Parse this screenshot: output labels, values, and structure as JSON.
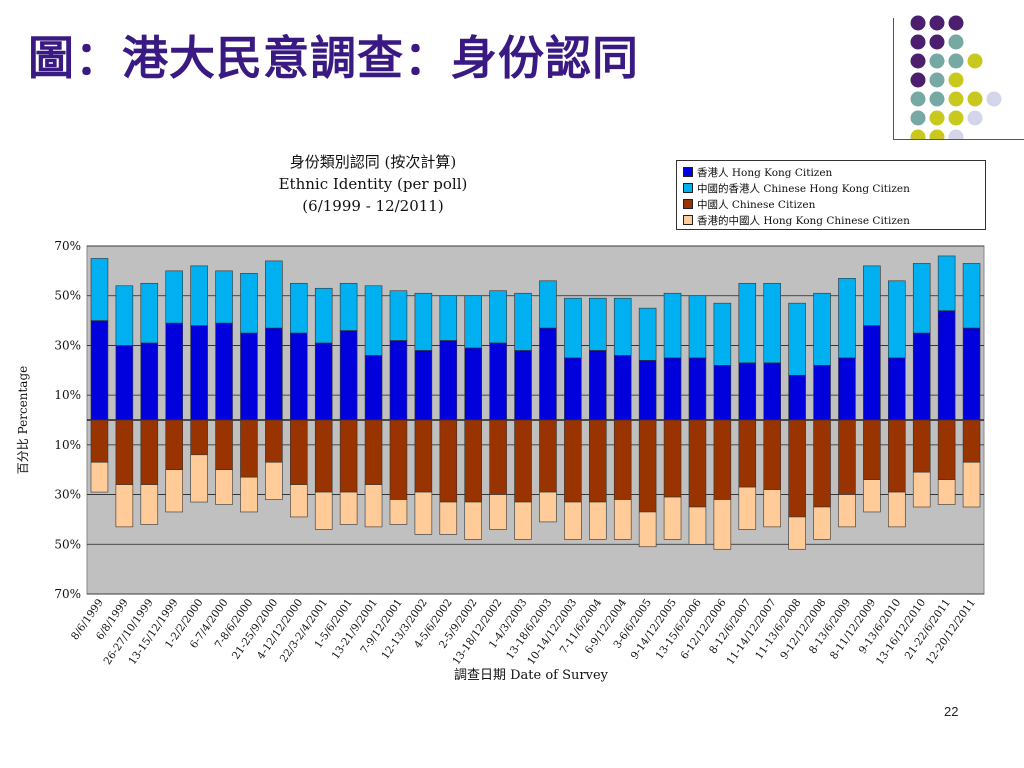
{
  "slide": {
    "title": "圖：港大民意調查：身份認同",
    "page_number": "22"
  },
  "legend": {
    "items": [
      {
        "label": "香港人 Hong Kong Citizen",
        "color": "#0000dd"
      },
      {
        "label": "中國的香港人 Chinese Hong Kong Citizen",
        "color": "#00b0f0"
      },
      {
        "label": "中國人 Chinese Citizen",
        "color": "#993300"
      },
      {
        "label": "香港的中國人 Hong Kong Chinese Citizen",
        "color": "#ffcc99"
      }
    ]
  },
  "chart_data": {
    "type": "bar",
    "title": "身份類別認同 (按次計算)",
    "subtitle": "Ethnic Identity (per poll)",
    "subtitle2": "(6/1999 - 12/2011)",
    "xlabel": "調查日期 Date of Survey",
    "ylabel": "百分比 Percentage",
    "ylim": [
      -70,
      70
    ],
    "y_tick_labels": [
      "70%",
      "50%",
      "30%",
      "10%",
      "10%",
      "30%",
      "50%",
      "70%"
    ],
    "grid": true,
    "categories": [
      "8/6/1999",
      "6/8/1999",
      "26-27/10/1999",
      "13-15/12/1999",
      "1-2/2/2000",
      "6-7/4/2000",
      "7-8/6/2000",
      "21-25/9/2000",
      "4-12/12/2000",
      "22/3-2/4/2001",
      "1-5/6/2001",
      "13-21/9/2001",
      "7-9/12/2001",
      "12-13/3/2002",
      "4-5/6/2002",
      "2-5/9/2002",
      "13-18/12/2002",
      "1-4/3/2003",
      "13-18/6/2003",
      "10-14/12/2003",
      "7-11/6/2004",
      "6-9/12/2004",
      "3-6/6/2005",
      "9-14/12/2005",
      "13-15/6/2006",
      "6-12/12/2006",
      "8-12/6/2007",
      "11-14/12/2007",
      "11-13/6/2008",
      "9-12/12/2008",
      "8-13/6/2009",
      "8-11/12/2009",
      "9-13/6/2010",
      "13-16/12/2010",
      "21-22/6/2011",
      "12-20/12/2011"
    ],
    "series": [
      {
        "name": "香港人 Hong Kong Citizen",
        "color": "#0000dd",
        "values": [
          40,
          30,
          31,
          39,
          38,
          39,
          35,
          37,
          35,
          31,
          36,
          26,
          32,
          28,
          32,
          29,
          31,
          28,
          37,
          25,
          28,
          26,
          24,
          25,
          25,
          22,
          23,
          23,
          18,
          22,
          25,
          38,
          25,
          35,
          44,
          37
        ]
      },
      {
        "name": "中國的香港人 Chinese Hong Kong Citizen",
        "color": "#00b0f0",
        "values": [
          25,
          24,
          24,
          21,
          24,
          21,
          24,
          27,
          20,
          22,
          19,
          28,
          20,
          23,
          18,
          21,
          21,
          23,
          19,
          24,
          21,
          23,
          21,
          26,
          25,
          25,
          32,
          32,
          29,
          29,
          32,
          24,
          31,
          28,
          22,
          26
        ]
      },
      {
        "name": "中國人 Chinese Citizen",
        "color": "#993300",
        "values": [
          17,
          26,
          26,
          20,
          14,
          20,
          23,
          17,
          26,
          29,
          29,
          26,
          32,
          29,
          33,
          33,
          30,
          33,
          29,
          33,
          33,
          32,
          37,
          31,
          35,
          32,
          27,
          28,
          39,
          35,
          30,
          24,
          29,
          21,
          24,
          17
        ]
      },
      {
        "name": "香港的中國人 Hong Kong Chinese Citizen",
        "color": "#ffcc99",
        "values": [
          12,
          17,
          16,
          17,
          19,
          14,
          14,
          15,
          13,
          15,
          13,
          17,
          10,
          17,
          13,
          15,
          14,
          15,
          12,
          15,
          15,
          16,
          14,
          17,
          15,
          20,
          17,
          15,
          13,
          13,
          13,
          13,
          14,
          14,
          10,
          18
        ]
      }
    ]
  }
}
